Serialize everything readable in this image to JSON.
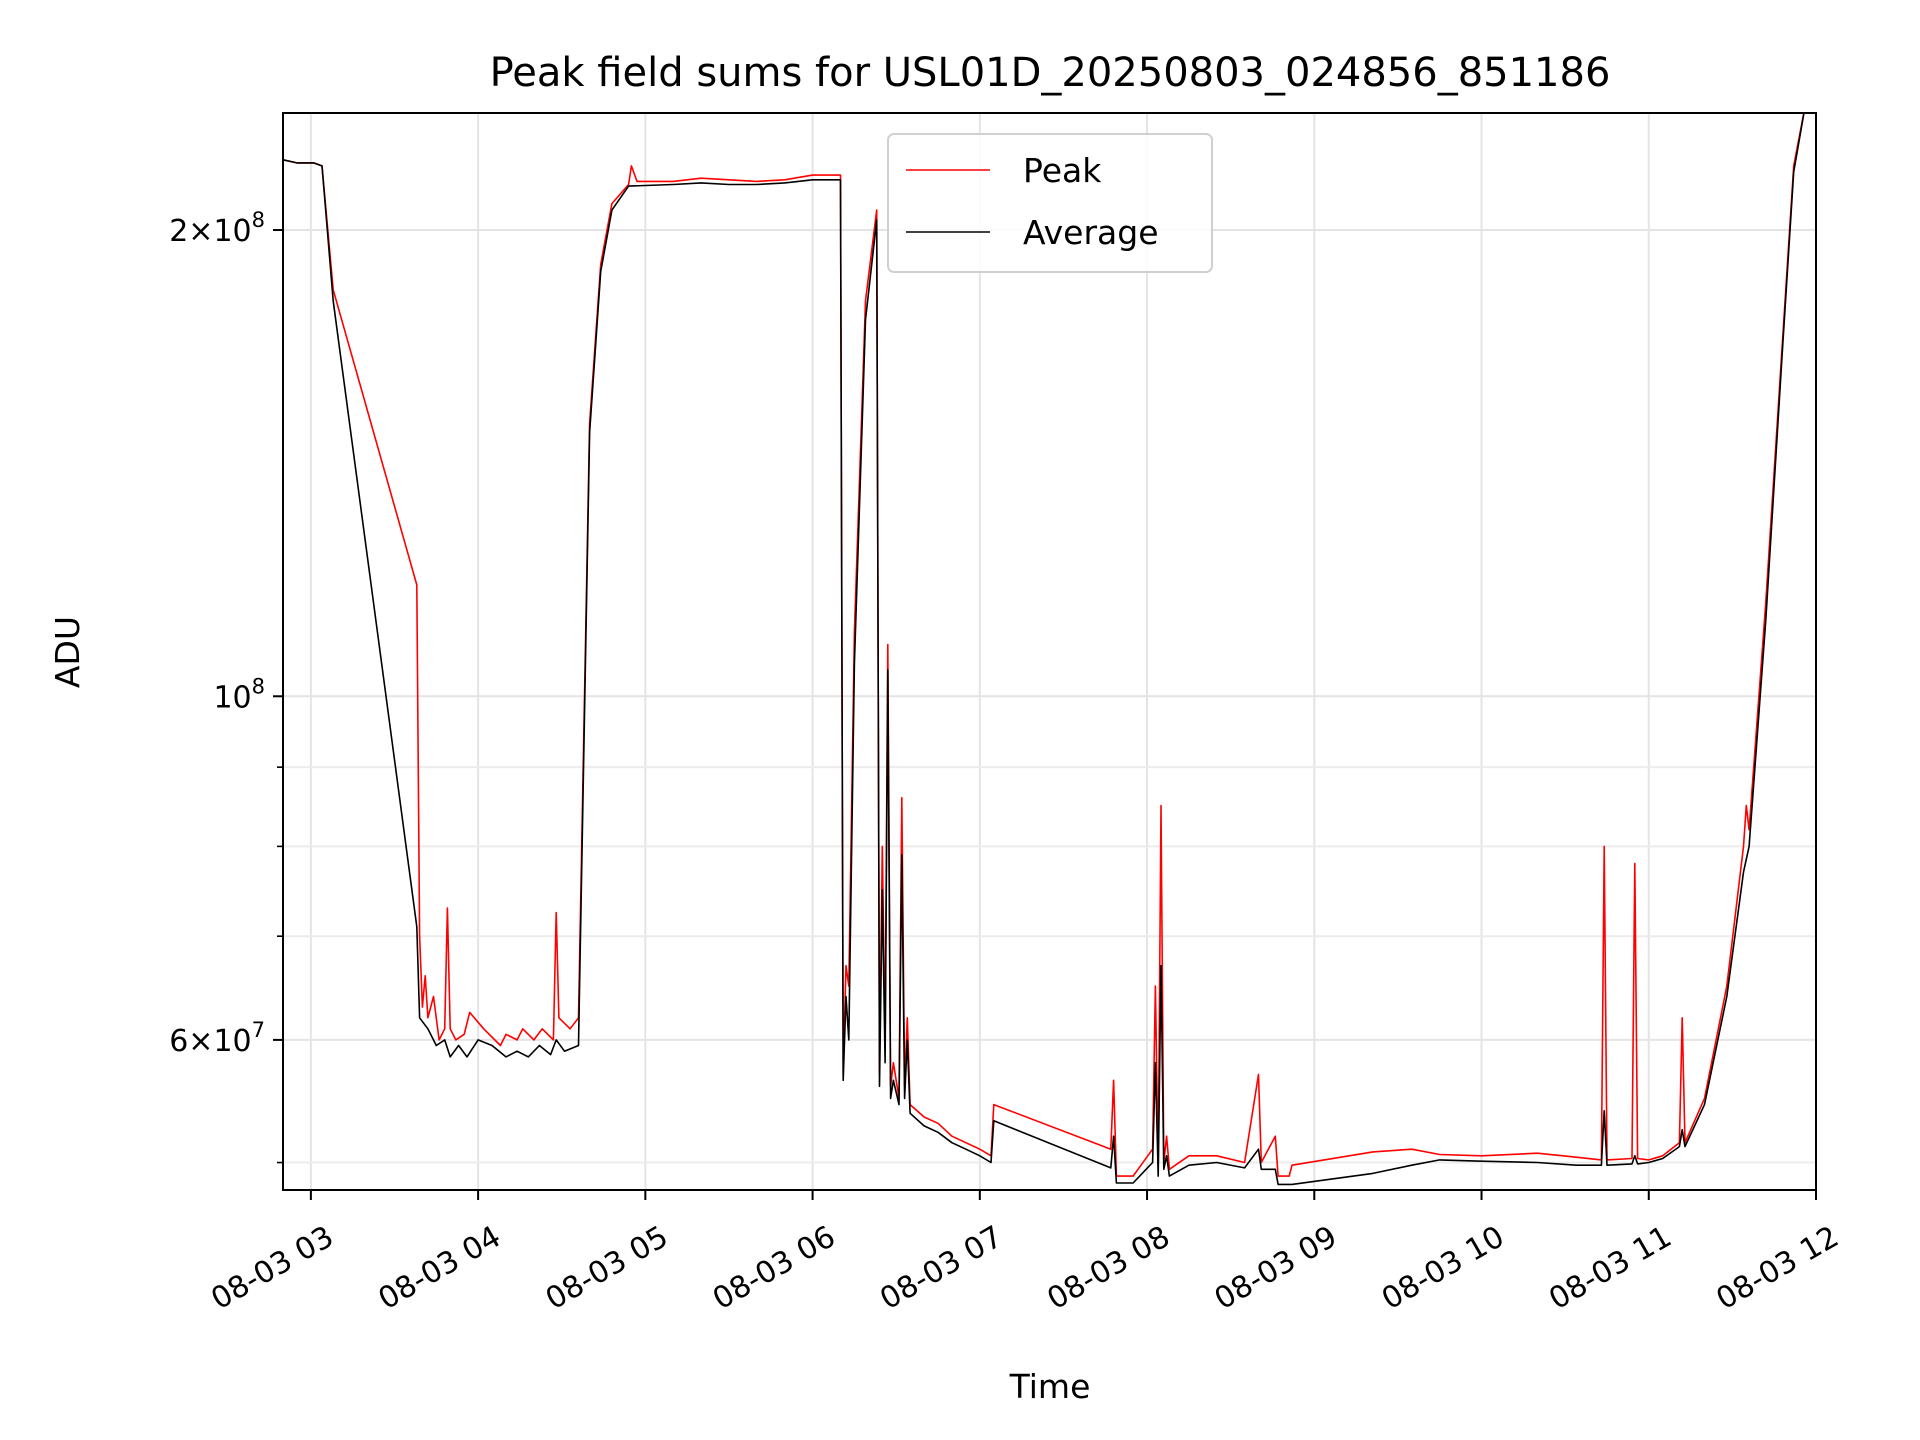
{
  "chart_data": {
    "type": "line",
    "title": "Peak field sums for USL01D_20250803_024856_851186",
    "xlabel": "Time",
    "ylabel": "ADU",
    "yscale": "log",
    "ylim": [
      48000000,
      238000000
    ],
    "xlim": [
      "2025-08-03 02:50",
      "2025-08-03 12:00"
    ],
    "grid": true,
    "legend_position": "top-center",
    "x_ticks": [
      "08-03 03",
      "08-03 04",
      "08-03 05",
      "08-03 06",
      "08-03 07",
      "08-03 08",
      "08-03 09",
      "08-03 10",
      "08-03 11",
      "08-03 12"
    ],
    "y_ticks": [
      {
        "value": 60000000,
        "label_base": "6",
        "label_exp": "7",
        "times": "×10"
      },
      {
        "value": 100000000,
        "label_base": "",
        "label_exp": "8",
        "times": "10"
      },
      {
        "value": 200000000,
        "label_base": "2",
        "label_exp": "8",
        "times": "×10"
      }
    ],
    "y_minor_ticks": [
      50000000,
      70000000,
      80000000,
      90000000
    ],
    "series": [
      {
        "name": "Peak",
        "color": "#ff0000",
        "points": [
          [
            "2025-08-03 02:50",
            222000000
          ],
          [
            "2025-08-03 02:55",
            221000000
          ],
          [
            "2025-08-03 03:01",
            221000000
          ],
          [
            "2025-08-03 03:04",
            220000000
          ],
          [
            "2025-08-03 03:08",
            183000000
          ],
          [
            "2025-08-03 03:38",
            118000000
          ],
          [
            "2025-08-03 03:39",
            70000000
          ],
          [
            "2025-08-03 03:40",
            63000000
          ],
          [
            "2025-08-03 03:41",
            66000000
          ],
          [
            "2025-08-03 03:42",
            62000000
          ],
          [
            "2025-08-03 03:44",
            64000000
          ],
          [
            "2025-08-03 03:46",
            60000000
          ],
          [
            "2025-08-03 03:48",
            61000000
          ],
          [
            "2025-08-03 03:49",
            73000000
          ],
          [
            "2025-08-03 03:50",
            61000000
          ],
          [
            "2025-08-03 03:52",
            60000000
          ],
          [
            "2025-08-03 03:55",
            60500000
          ],
          [
            "2025-08-03 03:57",
            62500000
          ],
          [
            "2025-08-03 04:02",
            61000000
          ],
          [
            "2025-08-03 04:08",
            59500000
          ],
          [
            "2025-08-03 04:10",
            60500000
          ],
          [
            "2025-08-03 04:14",
            60000000
          ],
          [
            "2025-08-03 04:16",
            61000000
          ],
          [
            "2025-08-03 04:20",
            60000000
          ],
          [
            "2025-08-03 04:23",
            61000000
          ],
          [
            "2025-08-03 04:27",
            60000000
          ],
          [
            "2025-08-03 04:28",
            72500000
          ],
          [
            "2025-08-03 04:29",
            62000000
          ],
          [
            "2025-08-03 04:33",
            61000000
          ],
          [
            "2025-08-03 04:36",
            62000000
          ],
          [
            "2025-08-03 04:40",
            150000000
          ],
          [
            "2025-08-03 04:44",
            190000000
          ],
          [
            "2025-08-03 04:48",
            208000000
          ],
          [
            "2025-08-03 04:54",
            214000000
          ],
          [
            "2025-08-03 04:55",
            220000000
          ],
          [
            "2025-08-03 04:57",
            215000000
          ],
          [
            "2025-08-03 05:10",
            215000000
          ],
          [
            "2025-08-03 05:20",
            216000000
          ],
          [
            "2025-08-03 05:30",
            215500000
          ],
          [
            "2025-08-03 05:40",
            215000000
          ],
          [
            "2025-08-03 05:50",
            215500000
          ],
          [
            "2025-08-03 06:00",
            217000000
          ],
          [
            "2025-08-03 06:10",
            217000000
          ],
          [
            "2025-08-03 06:11",
            57000000
          ],
          [
            "2025-08-03 06:12",
            67000000
          ],
          [
            "2025-08-03 06:13",
            65000000
          ],
          [
            "2025-08-03 06:15",
            110000000
          ],
          [
            "2025-08-03 06:19",
            180000000
          ],
          [
            "2025-08-03 06:23",
            206000000
          ],
          [
            "2025-08-03 06:24",
            57000000
          ],
          [
            "2025-08-03 06:25",
            80000000
          ],
          [
            "2025-08-03 06:26",
            60000000
          ],
          [
            "2025-08-03 06:27",
            108000000
          ],
          [
            "2025-08-03 06:28",
            56000000
          ],
          [
            "2025-08-03 06:29",
            58000000
          ],
          [
            "2025-08-03 06:31",
            55000000
          ],
          [
            "2025-08-03 06:32",
            86000000
          ],
          [
            "2025-08-03 06:33",
            56000000
          ],
          [
            "2025-08-03 06:34",
            62000000
          ],
          [
            "2025-08-03 06:35",
            54500000
          ],
          [
            "2025-08-03 06:40",
            53500000
          ],
          [
            "2025-08-03 06:45",
            53000000
          ],
          [
            "2025-08-03 06:50",
            52000000
          ],
          [
            "2025-08-03 06:55",
            51500000
          ],
          [
            "2025-08-03 07:00",
            51000000
          ],
          [
            "2025-08-03 07:04",
            50500000
          ],
          [
            "2025-08-03 07:05",
            54500000
          ],
          [
            "2025-08-03 07:47",
            51000000
          ],
          [
            "2025-08-03 07:48",
            56500000
          ],
          [
            "2025-08-03 07:49",
            49000000
          ],
          [
            "2025-08-03 07:55",
            49000000
          ],
          [
            "2025-08-03 08:02",
            51000000
          ],
          [
            "2025-08-03 08:03",
            65000000
          ],
          [
            "2025-08-03 08:04",
            49500000
          ],
          [
            "2025-08-03 08:05",
            85000000
          ],
          [
            "2025-08-03 08:06",
            50000000
          ],
          [
            "2025-08-03 08:07",
            52000000
          ],
          [
            "2025-08-03 08:08",
            49500000
          ],
          [
            "2025-08-03 08:15",
            50500000
          ],
          [
            "2025-08-03 08:25",
            50500000
          ],
          [
            "2025-08-03 08:35",
            50000000
          ],
          [
            "2025-08-03 08:40",
            57000000
          ],
          [
            "2025-08-03 08:41",
            50000000
          ],
          [
            "2025-08-03 08:46",
            52000000
          ],
          [
            "2025-08-03 08:47",
            49000000
          ],
          [
            "2025-08-03 08:51",
            49000000
          ],
          [
            "2025-08-03 08:52",
            49800000
          ],
          [
            "2025-08-03 09:21",
            50800000
          ],
          [
            "2025-08-03 09:35",
            51000000
          ],
          [
            "2025-08-03 09:45",
            50600000
          ],
          [
            "2025-08-03 10:00",
            50500000
          ],
          [
            "2025-08-03 10:20",
            50700000
          ],
          [
            "2025-08-03 10:34",
            50400000
          ],
          [
            "2025-08-03 10:43",
            50200000
          ],
          [
            "2025-08-03 10:44",
            80000000
          ],
          [
            "2025-08-03 10:45",
            50200000
          ],
          [
            "2025-08-03 10:54",
            50300000
          ],
          [
            "2025-08-03 10:55",
            78000000
          ],
          [
            "2025-08-03 10:56",
            50300000
          ],
          [
            "2025-08-03 11:00",
            50200000
          ],
          [
            "2025-08-03 11:05",
            50500000
          ],
          [
            "2025-08-03 11:11",
            51500000
          ],
          [
            "2025-08-03 11:12",
            62000000
          ],
          [
            "2025-08-03 11:13",
            51500000
          ],
          [
            "2025-08-03 11:20",
            55000000
          ],
          [
            "2025-08-03 11:28",
            65000000
          ],
          [
            "2025-08-03 11:34",
            80000000
          ],
          [
            "2025-08-03 11:35",
            85000000
          ],
          [
            "2025-08-03 11:36",
            82000000
          ],
          [
            "2025-08-03 11:42",
            115000000
          ],
          [
            "2025-08-03 11:48",
            170000000
          ],
          [
            "2025-08-03 11:52",
            220000000
          ],
          [
            "2025-08-03 11:56",
            240000000
          ]
        ]
      },
      {
        "name": "Average",
        "color": "#000000",
        "points": [
          [
            "2025-08-03 02:50",
            222000000
          ],
          [
            "2025-08-03 02:55",
            221000000
          ],
          [
            "2025-08-03 03:01",
            221000000
          ],
          [
            "2025-08-03 03:04",
            220000000
          ],
          [
            "2025-08-03 03:08",
            180000000
          ],
          [
            "2025-08-03 03:38",
            71000000
          ],
          [
            "2025-08-03 03:39",
            62000000
          ],
          [
            "2025-08-03 03:42",
            61000000
          ],
          [
            "2025-08-03 03:45",
            59500000
          ],
          [
            "2025-08-03 03:48",
            60000000
          ],
          [
            "2025-08-03 03:50",
            58500000
          ],
          [
            "2025-08-03 03:53",
            59500000
          ],
          [
            "2025-08-03 03:56",
            58500000
          ],
          [
            "2025-08-03 04:00",
            60000000
          ],
          [
            "2025-08-03 04:05",
            59500000
          ],
          [
            "2025-08-03 04:10",
            58500000
          ],
          [
            "2025-08-03 04:14",
            59000000
          ],
          [
            "2025-08-03 04:18",
            58500000
          ],
          [
            "2025-08-03 04:22",
            59500000
          ],
          [
            "2025-08-03 04:26",
            58700000
          ],
          [
            "2025-08-03 04:28",
            60000000
          ],
          [
            "2025-08-03 04:31",
            59000000
          ],
          [
            "2025-08-03 04:36",
            59500000
          ],
          [
            "2025-08-03 04:40",
            148000000
          ],
          [
            "2025-08-03 04:44",
            188000000
          ],
          [
            "2025-08-03 04:48",
            206000000
          ],
          [
            "2025-08-03 04:54",
            213500000
          ],
          [
            "2025-08-03 05:10",
            214000000
          ],
          [
            "2025-08-03 05:20",
            214500000
          ],
          [
            "2025-08-03 05:30",
            214000000
          ],
          [
            "2025-08-03 05:40",
            214000000
          ],
          [
            "2025-08-03 05:50",
            214500000
          ],
          [
            "2025-08-03 06:00",
            215500000
          ],
          [
            "2025-08-03 06:10",
            215500000
          ],
          [
            "2025-08-03 06:11",
            56500000
          ],
          [
            "2025-08-03 06:12",
            64000000
          ],
          [
            "2025-08-03 06:13",
            60000000
          ],
          [
            "2025-08-03 06:15",
            105000000
          ],
          [
            "2025-08-03 06:19",
            175000000
          ],
          [
            "2025-08-03 06:23",
            203000000
          ],
          [
            "2025-08-03 06:24",
            56000000
          ],
          [
            "2025-08-03 06:25",
            75000000
          ],
          [
            "2025-08-03 06:26",
            58000000
          ],
          [
            "2025-08-03 06:27",
            104000000
          ],
          [
            "2025-08-03 06:28",
            55000000
          ],
          [
            "2025-08-03 06:29",
            56500000
          ],
          [
            "2025-08-03 06:31",
            54500000
          ],
          [
            "2025-08-03 06:32",
            79000000
          ],
          [
            "2025-08-03 06:33",
            55000000
          ],
          [
            "2025-08-03 06:34",
            60000000
          ],
          [
            "2025-08-03 06:35",
            53800000
          ],
          [
            "2025-08-03 06:40",
            52800000
          ],
          [
            "2025-08-03 06:45",
            52300000
          ],
          [
            "2025-08-03 06:50",
            51500000
          ],
          [
            "2025-08-03 06:55",
            51000000
          ],
          [
            "2025-08-03 07:00",
            50500000
          ],
          [
            "2025-08-03 07:04",
            50000000
          ],
          [
            "2025-08-03 07:05",
            53200000
          ],
          [
            "2025-08-03 07:47",
            49600000
          ],
          [
            "2025-08-03 07:48",
            52000000
          ],
          [
            "2025-08-03 07:49",
            48500000
          ],
          [
            "2025-08-03 07:55",
            48500000
          ],
          [
            "2025-08-03 08:02",
            50000000
          ],
          [
            "2025-08-03 08:03",
            58000000
          ],
          [
            "2025-08-03 08:04",
            49000000
          ],
          [
            "2025-08-03 08:05",
            67000000
          ],
          [
            "2025-08-03 08:06",
            49500000
          ],
          [
            "2025-08-03 08:07",
            50500000
          ],
          [
            "2025-08-03 08:08",
            49000000
          ],
          [
            "2025-08-03 08:15",
            49800000
          ],
          [
            "2025-08-03 08:25",
            50000000
          ],
          [
            "2025-08-03 08:35",
            49600000
          ],
          [
            "2025-08-03 08:40",
            51000000
          ],
          [
            "2025-08-03 08:41",
            49500000
          ],
          [
            "2025-08-03 08:46",
            49500000
          ],
          [
            "2025-08-03 08:47",
            48400000
          ],
          [
            "2025-08-03 08:52",
            48400000
          ],
          [
            "2025-08-03 09:21",
            49200000
          ],
          [
            "2025-08-03 09:35",
            49800000
          ],
          [
            "2025-08-03 09:45",
            50200000
          ],
          [
            "2025-08-03 10:00",
            50100000
          ],
          [
            "2025-08-03 10:20",
            50000000
          ],
          [
            "2025-08-03 10:34",
            49800000
          ],
          [
            "2025-08-03 10:43",
            49800000
          ],
          [
            "2025-08-03 10:44",
            54000000
          ],
          [
            "2025-08-03 10:45",
            49800000
          ],
          [
            "2025-08-03 10:54",
            49900000
          ],
          [
            "2025-08-03 10:55",
            50500000
          ],
          [
            "2025-08-03 10:56",
            49900000
          ],
          [
            "2025-08-03 11:00",
            50000000
          ],
          [
            "2025-08-03 11:05",
            50300000
          ],
          [
            "2025-08-03 11:11",
            51200000
          ],
          [
            "2025-08-03 11:12",
            52500000
          ],
          [
            "2025-08-03 11:13",
            51200000
          ],
          [
            "2025-08-03 11:20",
            54500000
          ],
          [
            "2025-08-03 11:28",
            64000000
          ],
          [
            "2025-08-03 11:34",
            77000000
          ],
          [
            "2025-08-03 11:36",
            80000000
          ],
          [
            "2025-08-03 11:42",
            112000000
          ],
          [
            "2025-08-03 11:48",
            168000000
          ],
          [
            "2025-08-03 11:52",
            218000000
          ],
          [
            "2025-08-03 11:56",
            240000000
          ]
        ]
      }
    ]
  }
}
